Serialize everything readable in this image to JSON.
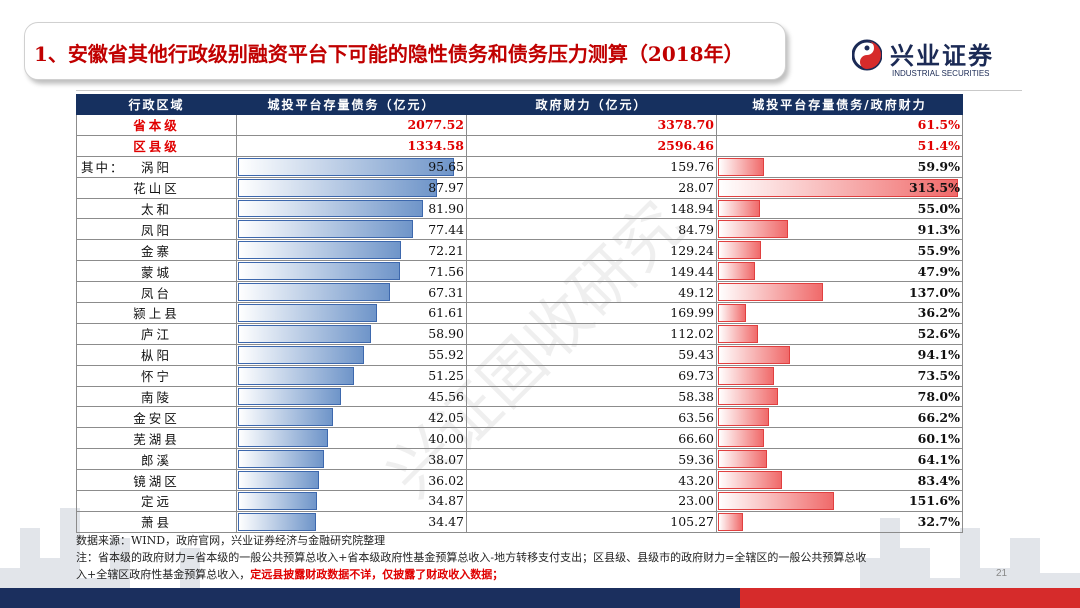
{
  "title": "1、安徽省其他行政级别融资平台下可能的隐性债务和债务压力测算（2018年）",
  "logo": {
    "cn": "兴业证券",
    "en": "INDUSTRIAL SECURITIES"
  },
  "watermark": "兴证固收研究",
  "colors": {
    "header_bg": "#16305f",
    "highlight": "#e00000",
    "bar_blue": "#6f95c9",
    "bar_red": "#f06a6a"
  },
  "table": {
    "headers": [
      "行政区域",
      "城投平台存量债务（亿元）",
      "政府财力（亿元）",
      "城投平台存量债务/政府财力"
    ],
    "prefix": "其中：",
    "rows": [
      {
        "name": "省本级",
        "debt": "2077.52",
        "fin": "3378.70",
        "ratio": "61.5%",
        "hl": true
      },
      {
        "name": "区县级",
        "debt": "1334.58",
        "fin": "2596.46",
        "ratio": "51.4%",
        "hl": true
      },
      {
        "name": "涡阳",
        "debt": "95.65",
        "fin": "159.76",
        "ratio": "59.9%",
        "debt_bar": 0.9565,
        "ratio_bar": 0.191,
        "prefixed": true
      },
      {
        "name": "花山区",
        "debt": "87.97",
        "fin": "28.07",
        "ratio": "313.5%",
        "debt_bar": 0.8797,
        "ratio_bar": 1.0
      },
      {
        "name": "太和",
        "debt": "81.90",
        "fin": "148.94",
        "ratio": "55.0%",
        "debt_bar": 0.819,
        "ratio_bar": 0.175
      },
      {
        "name": "凤阳",
        "debt": "77.44",
        "fin": "84.79",
        "ratio": "91.3%",
        "debt_bar": 0.7744,
        "ratio_bar": 0.291
      },
      {
        "name": "金寨",
        "debt": "72.21",
        "fin": "129.24",
        "ratio": "55.9%",
        "debt_bar": 0.7221,
        "ratio_bar": 0.178
      },
      {
        "name": "蒙城",
        "debt": "71.56",
        "fin": "149.44",
        "ratio": "47.9%",
        "debt_bar": 0.7156,
        "ratio_bar": 0.153
      },
      {
        "name": "凤台",
        "debt": "67.31",
        "fin": "49.12",
        "ratio": "137.0%",
        "debt_bar": 0.6731,
        "ratio_bar": 0.437
      },
      {
        "name": "颍上县",
        "debt": "61.61",
        "fin": "169.99",
        "ratio": "36.2%",
        "debt_bar": 0.6161,
        "ratio_bar": 0.115
      },
      {
        "name": "庐江",
        "debt": "58.90",
        "fin": "112.02",
        "ratio": "52.6%",
        "debt_bar": 0.589,
        "ratio_bar": 0.168
      },
      {
        "name": "枞阳",
        "debt": "55.92",
        "fin": "59.43",
        "ratio": "94.1%",
        "debt_bar": 0.5592,
        "ratio_bar": 0.3
      },
      {
        "name": "怀宁",
        "debt": "51.25",
        "fin": "69.73",
        "ratio": "73.5%",
        "debt_bar": 0.5125,
        "ratio_bar": 0.234
      },
      {
        "name": "南陵",
        "debt": "45.56",
        "fin": "58.38",
        "ratio": "78.0%",
        "debt_bar": 0.4556,
        "ratio_bar": 0.249
      },
      {
        "name": "金安区",
        "debt": "42.05",
        "fin": "63.56",
        "ratio": "66.2%",
        "debt_bar": 0.4205,
        "ratio_bar": 0.211
      },
      {
        "name": "芜湖县",
        "debt": "40.00",
        "fin": "66.60",
        "ratio": "60.1%",
        "debt_bar": 0.4,
        "ratio_bar": 0.192
      },
      {
        "name": "郎溪",
        "debt": "38.07",
        "fin": "59.36",
        "ratio": "64.1%",
        "debt_bar": 0.3807,
        "ratio_bar": 0.204
      },
      {
        "name": "镜湖区",
        "debt": "36.02",
        "fin": "43.20",
        "ratio": "83.4%",
        "debt_bar": 0.3602,
        "ratio_bar": 0.266
      },
      {
        "name": "定远",
        "debt": "34.87",
        "fin": "23.00",
        "ratio": "151.6%",
        "debt_bar": 0.3487,
        "ratio_bar": 0.484
      },
      {
        "name": "萧县",
        "debt": "34.47",
        "fin": "105.27",
        "ratio": "32.7%",
        "debt_bar": 0.3447,
        "ratio_bar": 0.104
      }
    ]
  },
  "notes": {
    "source": "数据来源：WIND，政府官网，兴业证券经济与金融研究院整理",
    "line1": "注：省本级的政府财力=省本级的一般公共预算总收入+省本级政府性基金预算总收入-地方转移支付支出；区县级、县级市的政府财力=全辖区的一般公共预算总收",
    "line2_a": "入+全辖区政府性基金预算总收入，",
    "line2_b": "定远县披露财政数据不详，仅披露了财政收入数据；"
  },
  "page_number": "21"
}
